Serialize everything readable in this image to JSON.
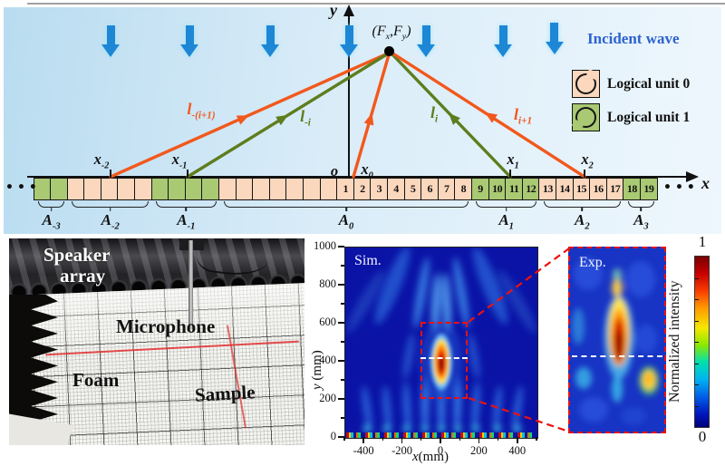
{
  "schematic": {
    "incident_wave_label": "Incident wave",
    "dots_left": "•••",
    "dots_right": "•••",
    "axis_x_label": "x",
    "axis_y_label": "y",
    "origin_label": "o",
    "focal_label_segs": [
      {
        "t": "(F"
      },
      {
        "s": "x"
      },
      {
        "t": ",F"
      },
      {
        "s": "y"
      },
      {
        "t": ")"
      }
    ],
    "ray_labels": [
      {
        "segs": [
          {
            "t": "l"
          },
          {
            "s": "-(i+1)"
          }
        ]
      },
      {
        "segs": [
          {
            "t": "l"
          },
          {
            "s": "-i"
          }
        ]
      },
      {
        "segs": [
          {
            "t": "l"
          },
          {
            "s": "i"
          }
        ]
      },
      {
        "segs": [
          {
            "t": "l"
          },
          {
            "s": "i+1"
          }
        ]
      }
    ],
    "position_labels": [
      {
        "segs": [
          {
            "t": "x"
          },
          {
            "s": "-2"
          }
        ]
      },
      {
        "segs": [
          {
            "t": "x"
          },
          {
            "s": "-1"
          }
        ]
      },
      {
        "segs": [
          {
            "t": "x"
          },
          {
            "s": "0"
          }
        ]
      },
      {
        "segs": [
          {
            "t": "x"
          },
          {
            "s": "1"
          }
        ]
      },
      {
        "segs": [
          {
            "t": "x"
          },
          {
            "s": "2"
          }
        ]
      }
    ],
    "legend": [
      {
        "label": "Logical unit 0",
        "unit": 0
      },
      {
        "label": "Logical unit 1",
        "unit": 1
      }
    ],
    "colors": {
      "unit0": "#fbd7bd",
      "unit1": "#a9c973",
      "orange": "#f2581c",
      "olive": "#5e7d1d",
      "arrow_blue": "#1d87d5"
    },
    "array": {
      "groups": [
        {
          "label_segs": [
            {
              "t": "A"
            },
            {
              "s": "-3"
            }
          ],
          "cells": [
            {
              "u": 1
            },
            {
              "u": 1
            }
          ]
        },
        {
          "label_segs": [
            {
              "t": "A"
            },
            {
              "s": "-2"
            }
          ],
          "cells": [
            {
              "u": 0
            },
            {
              "u": 0
            },
            {
              "u": 0
            },
            {
              "u": 0
            },
            {
              "u": 0
            }
          ]
        },
        {
          "label_segs": [
            {
              "t": "A"
            },
            {
              "s": "-1"
            }
          ],
          "cells": [
            {
              "u": 1
            },
            {
              "u": 1
            },
            {
              "u": 1
            },
            {
              "u": 1
            }
          ]
        },
        {
          "label_segs": [
            {
              "t": "A"
            },
            {
              "s": "0"
            }
          ],
          "cells": [
            {
              "u": 0
            },
            {
              "u": 0
            },
            {
              "u": 0
            },
            {
              "u": 0
            },
            {
              "u": 0
            },
            {
              "u": 0
            },
            {
              "u": 0
            },
            {
              "u": 0,
              "n": "1"
            },
            {
              "u": 0,
              "n": "2"
            },
            {
              "u": 0,
              "n": "3"
            },
            {
              "u": 0,
              "n": "4"
            },
            {
              "u": 0,
              "n": "5"
            },
            {
              "u": 0,
              "n": "6"
            },
            {
              "u": 0,
              "n": "7"
            },
            {
              "u": 0,
              "n": "8"
            }
          ]
        },
        {
          "label_segs": [
            {
              "t": "A"
            },
            {
              "s": "1"
            }
          ],
          "cells": [
            {
              "u": 1,
              "n": "9"
            },
            {
              "u": 1,
              "n": "10"
            },
            {
              "u": 1,
              "n": "11"
            },
            {
              "u": 1,
              "n": "12"
            }
          ]
        },
        {
          "label_segs": [
            {
              "t": "A"
            },
            {
              "s": "2"
            }
          ],
          "cells": [
            {
              "u": 0,
              "n": "13"
            },
            {
              "u": 0,
              "n": "14"
            },
            {
              "u": 0,
              "n": "15"
            },
            {
              "u": 0,
              "n": "16"
            },
            {
              "u": 0,
              "n": "17"
            }
          ]
        },
        {
          "label_segs": [
            {
              "t": "A"
            },
            {
              "s": "3"
            }
          ],
          "cells": [
            {
              "u": 1,
              "n": "18"
            },
            {
              "u": 1,
              "n": "19"
            }
          ]
        }
      ]
    }
  },
  "photo": {
    "label_speaker_line1": "Speaker",
    "label_speaker_line2": "array",
    "label_microphone": "Microphone",
    "label_foam": "Foam",
    "label_sample": "Sample"
  },
  "sim": {
    "title": "Sim.",
    "xlabel_var": "x",
    "xlabel_unit": "(mm)",
    "ylabel_var": "y",
    "ylabel_unit": " (mm)",
    "xticks": [
      "-400",
      "-200",
      "0",
      "200",
      "400"
    ],
    "yticks": [
      "0",
      "200",
      "400",
      "600",
      "800",
      "1000"
    ]
  },
  "exp": {
    "title": "Exp."
  },
  "colorbar": {
    "label": "Normalized intensity",
    "tick_max": "1",
    "tick_min": "0"
  },
  "chart_data": [
    {
      "type": "heatmap",
      "title": "Sim.",
      "xlabel": "x(mm)",
      "ylabel": "y (mm)",
      "xlim": [
        -500,
        500
      ],
      "ylim": [
        0,
        1000
      ],
      "xticks": [
        -400,
        -200,
        0,
        200,
        400
      ],
      "yticks": [
        0,
        200,
        400,
        600,
        800,
        1000
      ],
      "description": "Simulated normalized intensity field; focal hot spot near x=0, y≈400 mm; white dashed focal line; red dashed zoom box ≈ x[-120,120], y[210,600] mm"
    },
    {
      "type": "heatmap",
      "title": "Exp.",
      "description": "Measured normalized intensity inside the red dashed zoom box; central focal spot with white dashed focal line",
      "scale": [
        0,
        1
      ]
    }
  ]
}
